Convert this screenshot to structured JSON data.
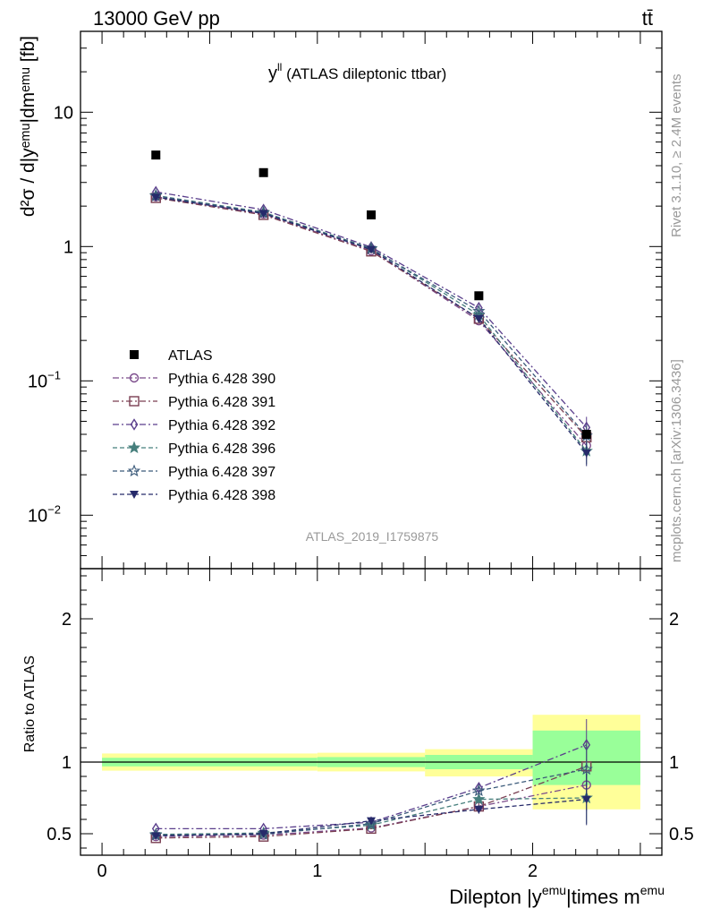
{
  "header": {
    "left": "13000 GeV pp",
    "right": "tt̄"
  },
  "side_labels": {
    "rivet": "Rivet 3.1.10, ≥ 2.4M events",
    "mcplots": "mcplots.cern.ch [arXiv:1306.3436]"
  },
  "analysis_id": "ATLAS_2019_I1759875",
  "chart_data": [
    {
      "type": "scatter",
      "title_main": "y",
      "title_sup": "ll",
      "title_rest": " (ATLAS dileptonic ttbar)",
      "ylabel": "d²σ / d|yᵉᵐᵘ|dmᵉᵐᵘ [fb]",
      "yscale": "log",
      "xlim": [
        -0.1,
        2.6
      ],
      "ylim": [
        0.004,
        40
      ],
      "yticks": [
        {
          "value": 10,
          "label": "10"
        },
        {
          "value": 1,
          "label": "1"
        },
        {
          "value": 0.1,
          "label": "10",
          "sup": "−1"
        },
        {
          "value": 0.01,
          "label": "10",
          "sup": "−2"
        }
      ],
      "x": [
        0.25,
        0.75,
        1.25,
        1.75,
        2.25
      ],
      "data": {
        "name": "ATLAS",
        "values": [
          4.8,
          3.55,
          1.72,
          0.43,
          0.04
        ]
      },
      "series": [
        {
          "name": "Pythia 6.428 390",
          "values": [
            2.35,
            1.75,
            0.93,
            0.28,
            0.033
          ],
          "color": "#7b4b8b",
          "marker": "circle-open",
          "dash": "7,3,2,3"
        },
        {
          "name": "Pythia 6.428 391",
          "values": [
            2.3,
            1.72,
            0.92,
            0.29,
            0.038
          ],
          "color": "#7a3f52",
          "marker": "square-open",
          "dash": "7,3,2,3"
        },
        {
          "name": "Pythia 6.428 392",
          "values": [
            2.55,
            1.88,
            0.99,
            0.35,
            0.045
          ],
          "color": "#5a3e8c",
          "marker": "diamond-open",
          "dash": "7,3,2,3"
        },
        {
          "name": "Pythia 6.428 396",
          "values": [
            2.4,
            1.8,
            0.97,
            0.31,
            0.03
          ],
          "color": "#467f7c",
          "marker": "star-filled",
          "dash": "5,3"
        },
        {
          "name": "Pythia 6.428 397",
          "values": [
            2.38,
            1.78,
            0.96,
            0.33,
            0.039
          ],
          "color": "#3b5a7a",
          "marker": "star-open",
          "dash": "5,3"
        },
        {
          "name": "Pythia 6.428 398",
          "values": [
            2.33,
            1.76,
            0.95,
            0.29,
            0.029
          ],
          "color": "#262a6a",
          "marker": "triangle-down-filled",
          "dash": "5,3"
        }
      ],
      "legend_position": "middle-left"
    },
    {
      "type": "scatter",
      "ylabel": "Ratio to ATLAS",
      "xlabel": "Dilepton |y",
      "xlabel_sup1": "emu",
      "xlabel_mid": "|times m",
      "xlabel_sup2": "emu",
      "xlim": [
        -0.1,
        2.6
      ],
      "ylim": [
        0.35,
        2.35
      ],
      "xticks": [
        0,
        1,
        2
      ],
      "yticks": [
        0.5,
        1,
        2
      ],
      "bins": [
        [
          0,
          1
        ],
        [
          1,
          1.5
        ],
        [
          1.5,
          2
        ],
        [
          2,
          2.5
        ]
      ],
      "band_inner": [
        [
          0.97,
          1.03
        ],
        [
          0.965,
          1.035
        ],
        [
          0.95,
          1.05
        ],
        [
          0.84,
          1.22
        ]
      ],
      "band_outer": [
        [
          0.94,
          1.06
        ],
        [
          0.935,
          1.065
        ],
        [
          0.9,
          1.09
        ],
        [
          0.67,
          1.33
        ]
      ],
      "x": [
        0.25,
        0.75,
        1.25,
        1.75,
        2.25
      ],
      "series": [
        {
          "name": "Pythia 6.428 390",
          "values": [
            0.48,
            0.49,
            0.54,
            0.69,
            0.84
          ]
        },
        {
          "name": "Pythia 6.428 391",
          "values": [
            0.47,
            0.48,
            0.535,
            0.69,
            0.97
          ]
        },
        {
          "name": "Pythia 6.428 392",
          "values": [
            0.535,
            0.535,
            0.58,
            0.82,
            1.12
          ]
        },
        {
          "name": "Pythia 6.428 396",
          "values": [
            0.495,
            0.505,
            0.56,
            0.74,
            0.75
          ]
        },
        {
          "name": "Pythia 6.428 397",
          "values": [
            0.49,
            0.495,
            0.57,
            0.8,
            0.95
          ]
        },
        {
          "name": "Pythia 6.428 398",
          "values": [
            0.485,
            0.5,
            0.59,
            0.67,
            0.74
          ]
        }
      ]
    }
  ]
}
